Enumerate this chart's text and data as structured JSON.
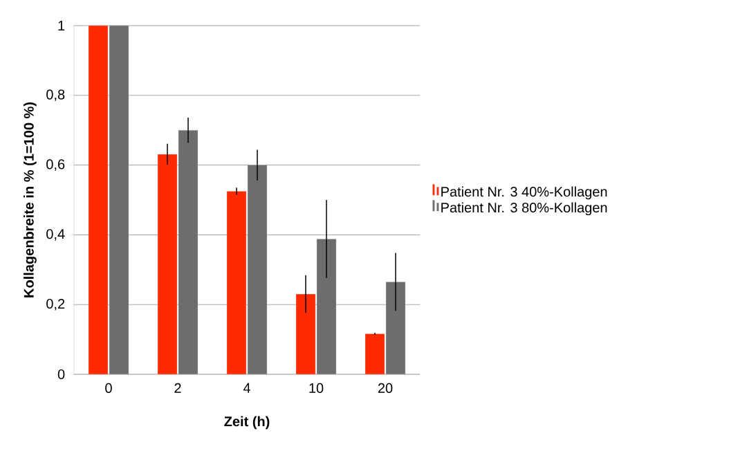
{
  "chart_data": {
    "type": "bar",
    "xlabel": "Zeit (h)",
    "ylabel": "Kollagenbreite in % (1=100 %)",
    "categories": [
      "0",
      "2",
      "4",
      "10",
      "20"
    ],
    "series": [
      {
        "name": "Patient Nr. 3 40%-Kollagen",
        "color": "#ff2a00",
        "values": [
          1,
          0.631,
          0.525,
          0.23,
          0.116
        ],
        "errors": [
          null,
          0.03,
          0.01,
          0.054,
          0.003
        ]
      },
      {
        "name": "Patient Nr. 3 80%-Kollagen",
        "color": "#6d6d6d",
        "values": [
          1,
          0.7,
          0.6,
          0.388,
          0.265
        ],
        "errors": [
          null,
          0.036,
          0.044,
          0.112,
          0.083
        ]
      }
    ],
    "ylim": [
      0,
      1
    ],
    "yticks": [
      0,
      {
        "value": 0.2,
        "label": "0,2"
      },
      {
        "value": 0.4,
        "label": "0,4"
      },
      {
        "value": 0.6,
        "label": "0,6"
      },
      {
        "value": 0.8,
        "label": "0,8"
      },
      1
    ],
    "grid": "y",
    "legend": "right"
  }
}
